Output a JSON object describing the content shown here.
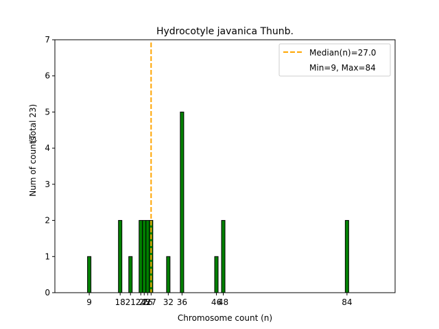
{
  "chart_data": {
    "type": "bar",
    "title": "Hydrocotyle javanica Thunb.",
    "xlabel": "Chromosome count (n)",
    "ylabel": "Num of counts",
    "ylabel_total": "(Total 23)",
    "xlim": [
      -1,
      98
    ],
    "ylim": [
      0,
      7
    ],
    "yticks": [
      0,
      1,
      2,
      3,
      4,
      5,
      6,
      7
    ],
    "x": [
      9,
      18,
      21,
      24,
      25,
      26,
      27,
      32,
      36,
      46,
      48,
      84
    ],
    "values": [
      1,
      2,
      1,
      2,
      2,
      2,
      2,
      1,
      5,
      1,
      2,
      2
    ],
    "xtick_labels": [
      "9",
      "18",
      "21",
      "24",
      "25",
      "26",
      "27",
      "32",
      "36",
      "46",
      "48",
      "84"
    ],
    "bar_width": 1,
    "bar_color": "#008000",
    "bar_edge_color": "#000000",
    "median": 27.0,
    "median_color": "#ffa500",
    "legend": {
      "position": "top-right",
      "median_label": "Median(n)=27.0",
      "range_label": "Min=9, Max=84"
    }
  }
}
